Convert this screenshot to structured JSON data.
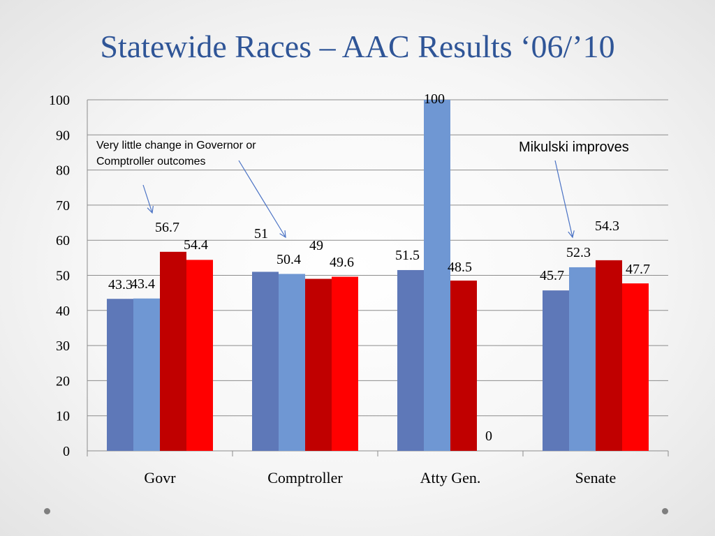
{
  "slide": {
    "title": "Statewide Races – AAC Results ‘06/’10"
  },
  "chart_data": {
    "type": "bar",
    "categories": [
      "Govr",
      "Comptroller",
      "Atty Gen.",
      "Senate"
    ],
    "series": [
      {
        "color": "#5e78b8",
        "values": [
          43.3,
          51,
          51.5,
          45.7
        ]
      },
      {
        "color": "#6f97d3",
        "values": [
          43.4,
          50.4,
          100,
          52.3
        ]
      },
      {
        "color": "#c00000",
        "values": [
          56.7,
          49,
          48.5,
          54.3
        ]
      },
      {
        "color": "#ff0000",
        "values": [
          54.4,
          49.6,
          0,
          47.7
        ]
      }
    ],
    "data_labels": [
      [
        "43.3",
        "51",
        "51.5",
        "45.7"
      ],
      [
        "43.4",
        "50.4",
        "100",
        "52.3"
      ],
      [
        "56.7",
        "49",
        "48.5",
        "54.3"
      ],
      [
        "54.4",
        "49.6",
        "0",
        "47.7"
      ]
    ],
    "ylim": [
      0,
      100
    ],
    "yticks": [
      0,
      10,
      20,
      30,
      40,
      50,
      60,
      70,
      80,
      90,
      100
    ],
    "grid": true,
    "annotations": [
      {
        "text_lines": [
          "Very little change in Governor or",
          "Comptroller outcomes"
        ]
      },
      {
        "text_lines": [
          "Mikulski improves"
        ]
      }
    ]
  }
}
